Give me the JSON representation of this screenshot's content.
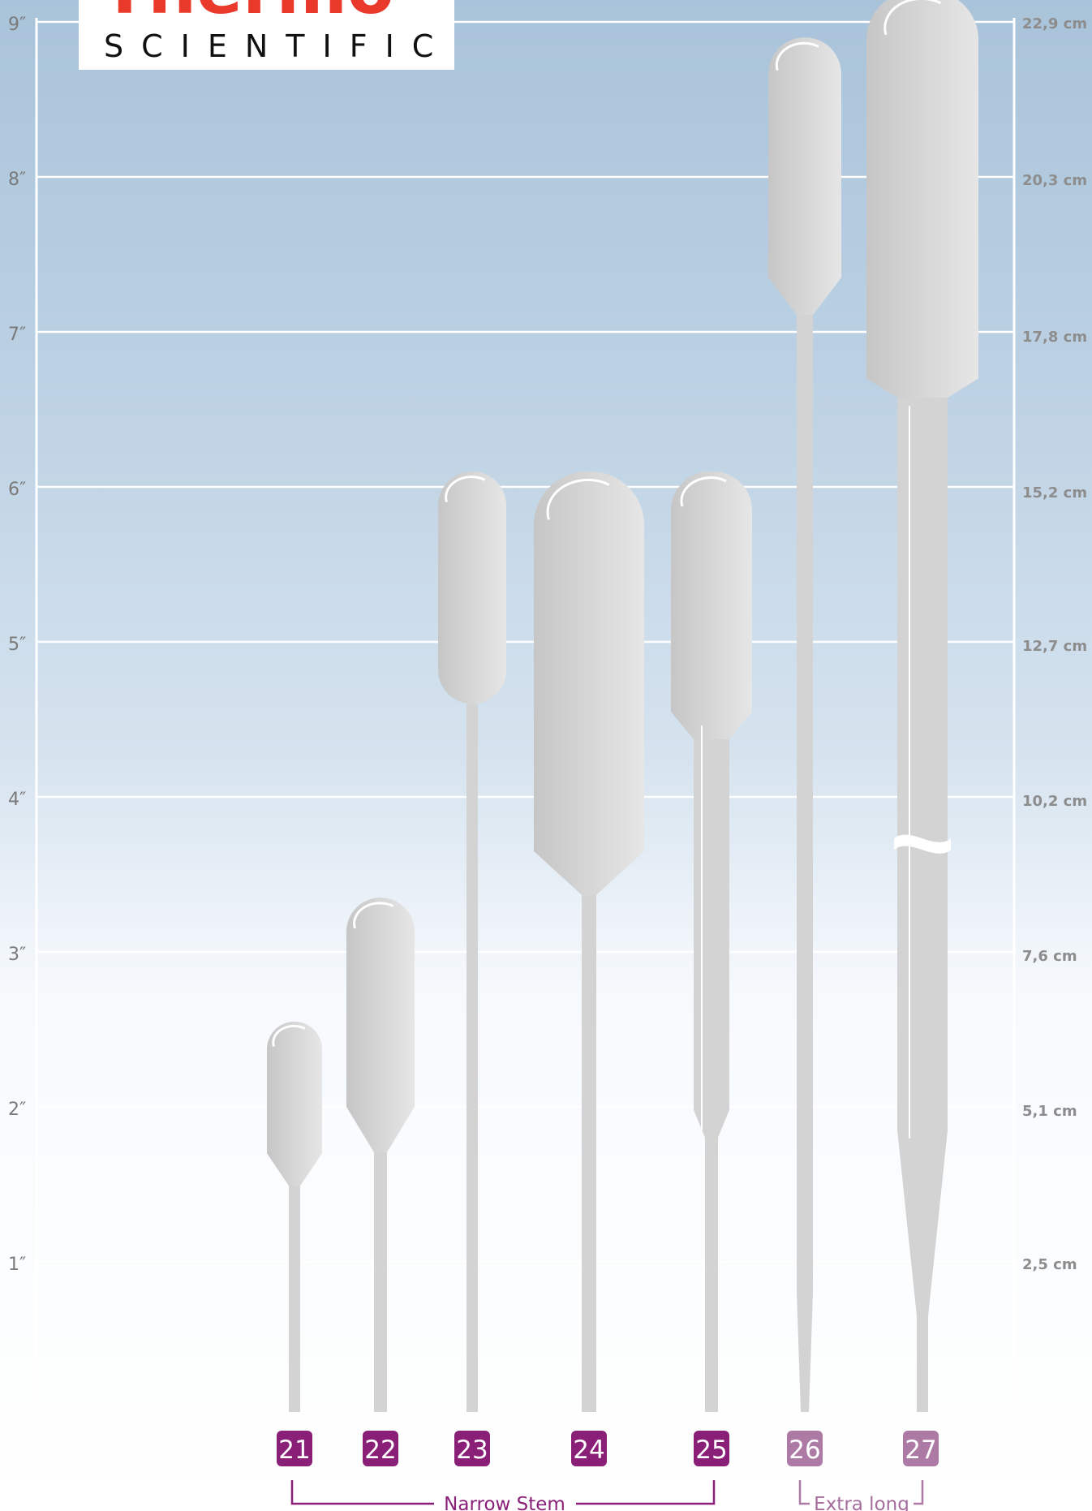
{
  "logo": {
    "line1": "Thermo",
    "line2": "SCIENTIFIC"
  },
  "scale": {
    "left_ticks": [
      "1″",
      "2″",
      "3″",
      "4″",
      "5″",
      "6″",
      "7″",
      "8″",
      "9″"
    ],
    "right_ticks": [
      "2,5 cm",
      "5,1 cm",
      "7,6 cm",
      "10,2 cm",
      "12,7 cm",
      "15,2 cm",
      "17,8 cm",
      "20,3 cm",
      "22,9 cm"
    ]
  },
  "pipettes": [
    {
      "id": "21",
      "group": "narrow",
      "overall_length_in": 2.55,
      "bulb_bottom_in": 1.7
    },
    {
      "id": "22",
      "group": "narrow",
      "overall_length_in": 3.35,
      "bulb_bottom_in": 2.0
    },
    {
      "id": "23",
      "group": "narrow",
      "overall_length_in": 6.1,
      "bulb_bottom_in": 4.6
    },
    {
      "id": "24",
      "group": "narrow",
      "overall_length_in": 6.1,
      "bulb_bottom_in": 3.65
    },
    {
      "id": "25",
      "group": "narrow",
      "overall_length_in": 6.1,
      "bulb_bottom_in": 4.55
    },
    {
      "id": "26",
      "group": "extra",
      "overall_length_in": 8.9,
      "bulb_bottom_in": 7.35
    },
    {
      "id": "27",
      "group": "extra",
      "overall_length_in": 9.2,
      "bulb_bottom_in": 6.7
    }
  ],
  "groups": {
    "narrow": "Narrow Stem",
    "extra": "Extra long"
  },
  "colors": {
    "narrow_badge": "#8a1f78",
    "extra_badge": "#ad7aa6",
    "logo_red": "#e8392b",
    "grid": "#ffffff"
  }
}
